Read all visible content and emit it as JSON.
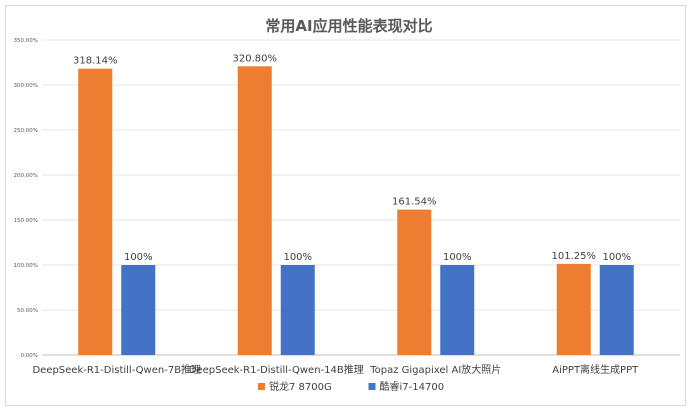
{
  "chart_data": {
    "type": "bar",
    "title": "常用AI应用性能表现对比",
    "categories": [
      "DeepSeek-R1-Distill-Qwen-7B推理",
      "DeepSeek-R1-Distill-Qwen-14B推理",
      "Topaz Gigapixel AI放大照片",
      "AiPPT离线生成PPT"
    ],
    "series": [
      {
        "name": "锐龙7 8700G",
        "color": "#ed7d31",
        "values": [
          318.14,
          320.8,
          161.54,
          101.25
        ],
        "labels": [
          "318.14%",
          "320.80%",
          "161.54%",
          "101.25%"
        ]
      },
      {
        "name": "酷睿i7-14700",
        "color": "#4472c4",
        "values": [
          100,
          100,
          100,
          100
        ],
        "labels": [
          "100%",
          "100%",
          "100%",
          "100%"
        ]
      }
    ],
    "ylim": [
      0,
      350
    ],
    "yticks": [
      "0.00%",
      "50.00%",
      "100.00%",
      "150.00%",
      "200.00%",
      "250.00%",
      "300.00%",
      "350.00%"
    ],
    "grid": true,
    "legend": "bottom"
  }
}
